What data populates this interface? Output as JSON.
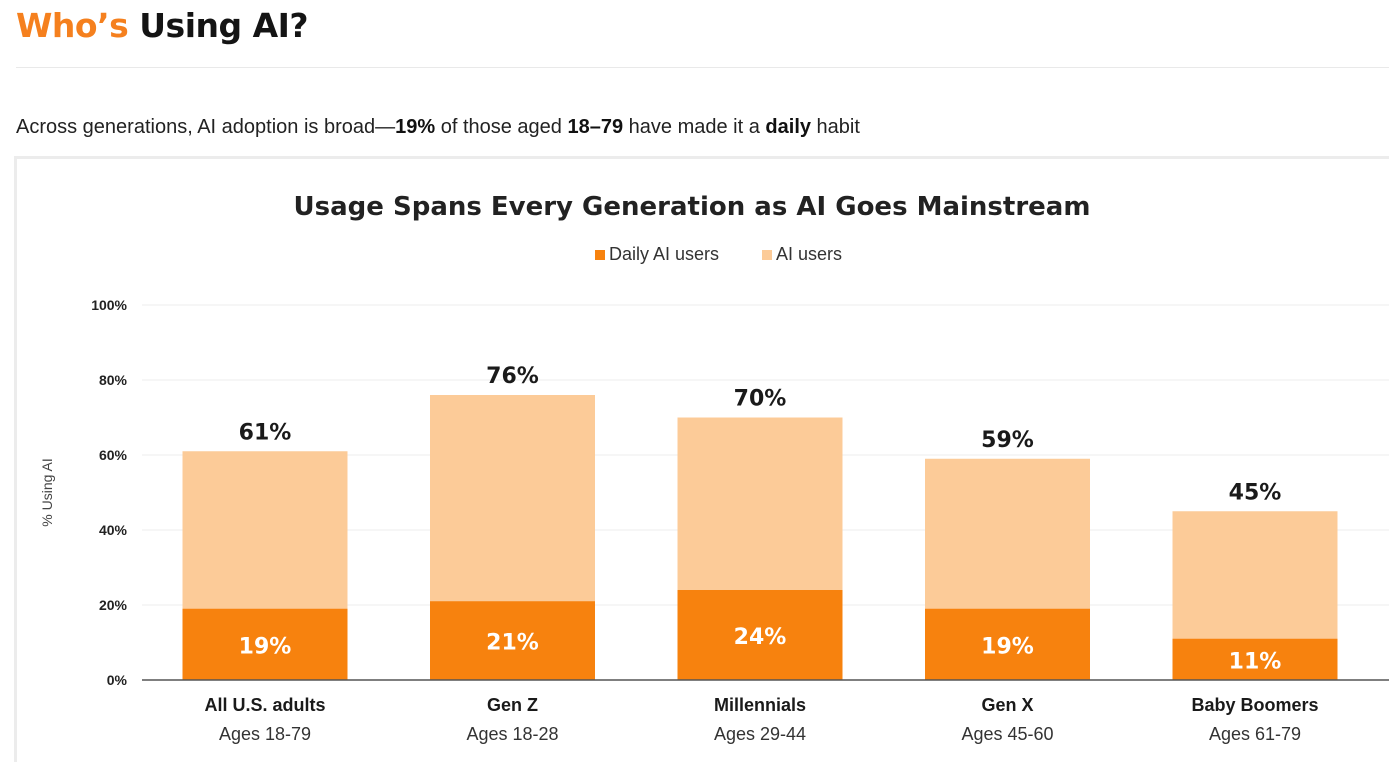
{
  "page": {
    "title_accent": "Who’s",
    "title_rest": "Using AI?",
    "subtitle": {
      "lead": "Across generations, AI adoption is broad—",
      "stat": "19%",
      "mid": " of those aged ",
      "ages": "18–79",
      "mid2": " have made it a ",
      "emph": "daily",
      "tail": " habit"
    }
  },
  "colors": {
    "accent": "#f5801e",
    "daily": "#f7820e",
    "users": "#fccb98",
    "grid": "#eeeeee",
    "axis": "#555555"
  },
  "chart_data": {
    "type": "bar",
    "stacked": true,
    "title": "Usage Spans Every Generation as AI Goes Mainstream",
    "ylabel": "% Using AI",
    "ylim": [
      0,
      100
    ],
    "yticks": [
      0,
      20,
      40,
      60,
      80,
      100
    ],
    "ytick_labels": [
      "0%",
      "20%",
      "40%",
      "60%",
      "80%",
      "100%"
    ],
    "legend_position": "top-center",
    "grid": true,
    "categories": [
      "All U.S. adults",
      "Gen Z",
      "Millennials",
      "Gen X",
      "Baby Boomers"
    ],
    "sublabels": [
      "Ages 18-79",
      "Ages 18-28",
      "Ages 29-44",
      "Ages 45-60",
      "Ages 61-79"
    ],
    "series": [
      {
        "name": "Daily AI users",
        "values": [
          19,
          21,
          24,
          19,
          11
        ],
        "labels": [
          "19%",
          "21%",
          "24%",
          "19%",
          "11%"
        ]
      },
      {
        "name": "AI users",
        "values": [
          61,
          76,
          70,
          59,
          45
        ],
        "labels": [
          "61%",
          "76%",
          "70%",
          "59%",
          "45%"
        ]
      }
    ]
  }
}
